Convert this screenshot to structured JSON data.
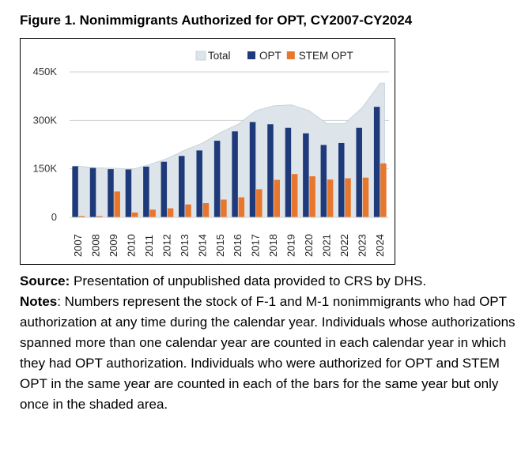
{
  "figure": {
    "title": "Figure 1. Nonimmigrants Authorized for OPT, CY2007-CY2024"
  },
  "chart_data": {
    "type": "bar",
    "title": "Figure 1. Nonimmigrants Authorized for OPT, CY2007-CY2024",
    "xlabel": "",
    "ylabel": "",
    "ylim": [
      0,
      450000
    ],
    "yticks": [
      0,
      150000,
      300000,
      450000
    ],
    "ytick_labels": [
      "0",
      "150K",
      "300K",
      "450K"
    ],
    "grid": "horizontal",
    "legend_position": "top-right",
    "categories": [
      "2007",
      "2008",
      "2009",
      "2010",
      "2011",
      "2012",
      "2013",
      "2014",
      "2015",
      "2016",
      "2017",
      "2018",
      "2019",
      "2020",
      "2021",
      "2022",
      "2023",
      "2024"
    ],
    "series": [
      {
        "name": "Total",
        "type": "area",
        "color": "#dde5ea",
        "edge_color": "#c7d3db",
        "values": [
          158000,
          153000,
          152000,
          148000,
          163000,
          182000,
          208000,
          230000,
          262000,
          288000,
          330000,
          345000,
          348000,
          330000,
          290000,
          290000,
          340000,
          415000
        ]
      },
      {
        "name": "OPT",
        "type": "bar",
        "color": "#1f3a7a",
        "values": [
          158000,
          153000,
          149000,
          148000,
          157000,
          172000,
          190000,
          207000,
          237000,
          266000,
          295000,
          288000,
          277000,
          260000,
          224000,
          230000,
          277000,
          342000
        ]
      },
      {
        "name": "STEM OPT",
        "type": "bar",
        "color": "#e8772e",
        "values": [
          4000,
          4000,
          80000,
          15000,
          24000,
          28000,
          40000,
          44000,
          55000,
          62000,
          87000,
          116000,
          134000,
          127000,
          117000,
          121000,
          123000,
          167000
        ]
      }
    ]
  },
  "notes": {
    "source_label": "Source:",
    "source_text": " Presentation of unpublished data provided to CRS by DHS.",
    "notes_label": "Notes",
    "notes_text": ": Numbers represent the stock of F-1 and M-1 nonimmigrants who had OPT authorization at any time during the calendar year. Individuals whose authorizations spanned more than one calendar year are counted in each calendar year in which they had OPT authorization. Individuals who were authorized for OPT and STEM OPT in the same year are counted in each of the bars for the same year but only once in the shaded area."
  }
}
